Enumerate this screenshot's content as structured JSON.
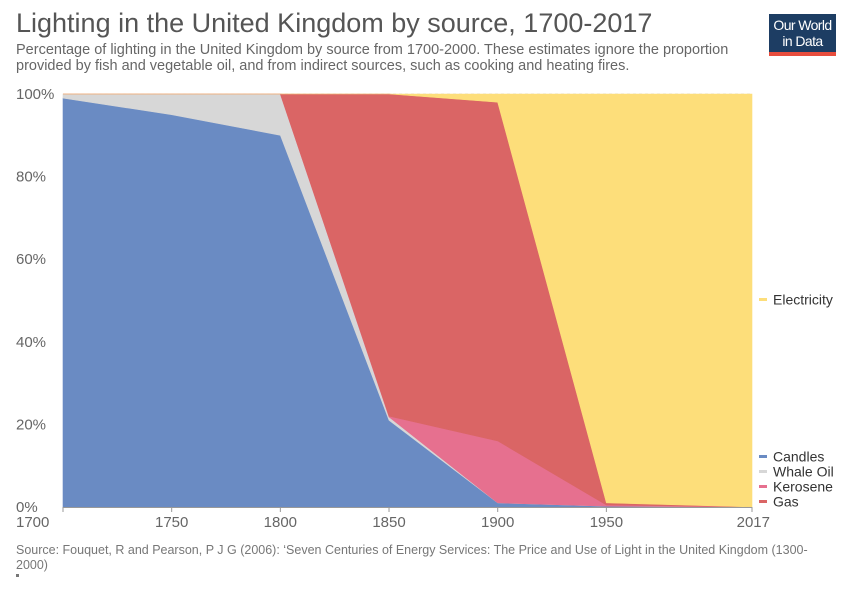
{
  "header": {
    "title": "Lighting in the United Kingdom by source, 1700-2017",
    "subtitle": "Percentage of lighting in the United Kingdom by source from 1700-2000. These estimates ignore the proportion provided by fish and vegetable oil, and from indirect sources, such as cooking and heating fires."
  },
  "logo": {
    "line1": "Our World",
    "line2": "in Data",
    "bg_color": "#1d3d63",
    "accent_color": "#e84d3d"
  },
  "footer": {
    "source": "Source: Fouquet, R and Pearson, P J G (2006): ‘Seven Centuries of Energy Services: The Price and Use of Light in the United Kingdom (1300-2000)"
  },
  "chart_data": {
    "type": "area",
    "stacked": true,
    "title": "Lighting in the United Kingdom by source, 1700-2017",
    "xlabel": "",
    "ylabel": "",
    "x": [
      1700,
      1750,
      1800,
      1850,
      1900,
      1950,
      2017
    ],
    "xlim": [
      1700,
      2017
    ],
    "ylim": [
      0,
      100
    ],
    "x_ticks": [
      "1700",
      "1750",
      "1800",
      "1850",
      "1900",
      "1950",
      "2017"
    ],
    "y_ticks": [
      "0%",
      "20%",
      "40%",
      "60%",
      "80%",
      "100%"
    ],
    "y_tick_values": [
      0,
      20,
      40,
      60,
      80,
      100
    ],
    "grid": "horizontal-dashed",
    "legend_position": "right",
    "series": [
      {
        "name": "Candles",
        "color": "#6a8bc3",
        "values": [
          99,
          95,
          90,
          21,
          1,
          0.2,
          0
        ]
      },
      {
        "name": "Whale Oil",
        "color": "#d7d7d7",
        "values": [
          1,
          5,
          10,
          0.8,
          0,
          0,
          0
        ]
      },
      {
        "name": "Kerosene",
        "color": "#e6708f",
        "values": [
          0,
          0,
          0,
          0.2,
          15,
          0.3,
          0
        ]
      },
      {
        "name": "Gas",
        "color": "#da6565",
        "values": [
          0,
          0,
          0,
          78,
          82,
          0.5,
          0
        ]
      },
      {
        "name": "Electricity",
        "color": "#fdde7a",
        "values": [
          0,
          0,
          0,
          0,
          2,
          99,
          100
        ]
      }
    ]
  }
}
